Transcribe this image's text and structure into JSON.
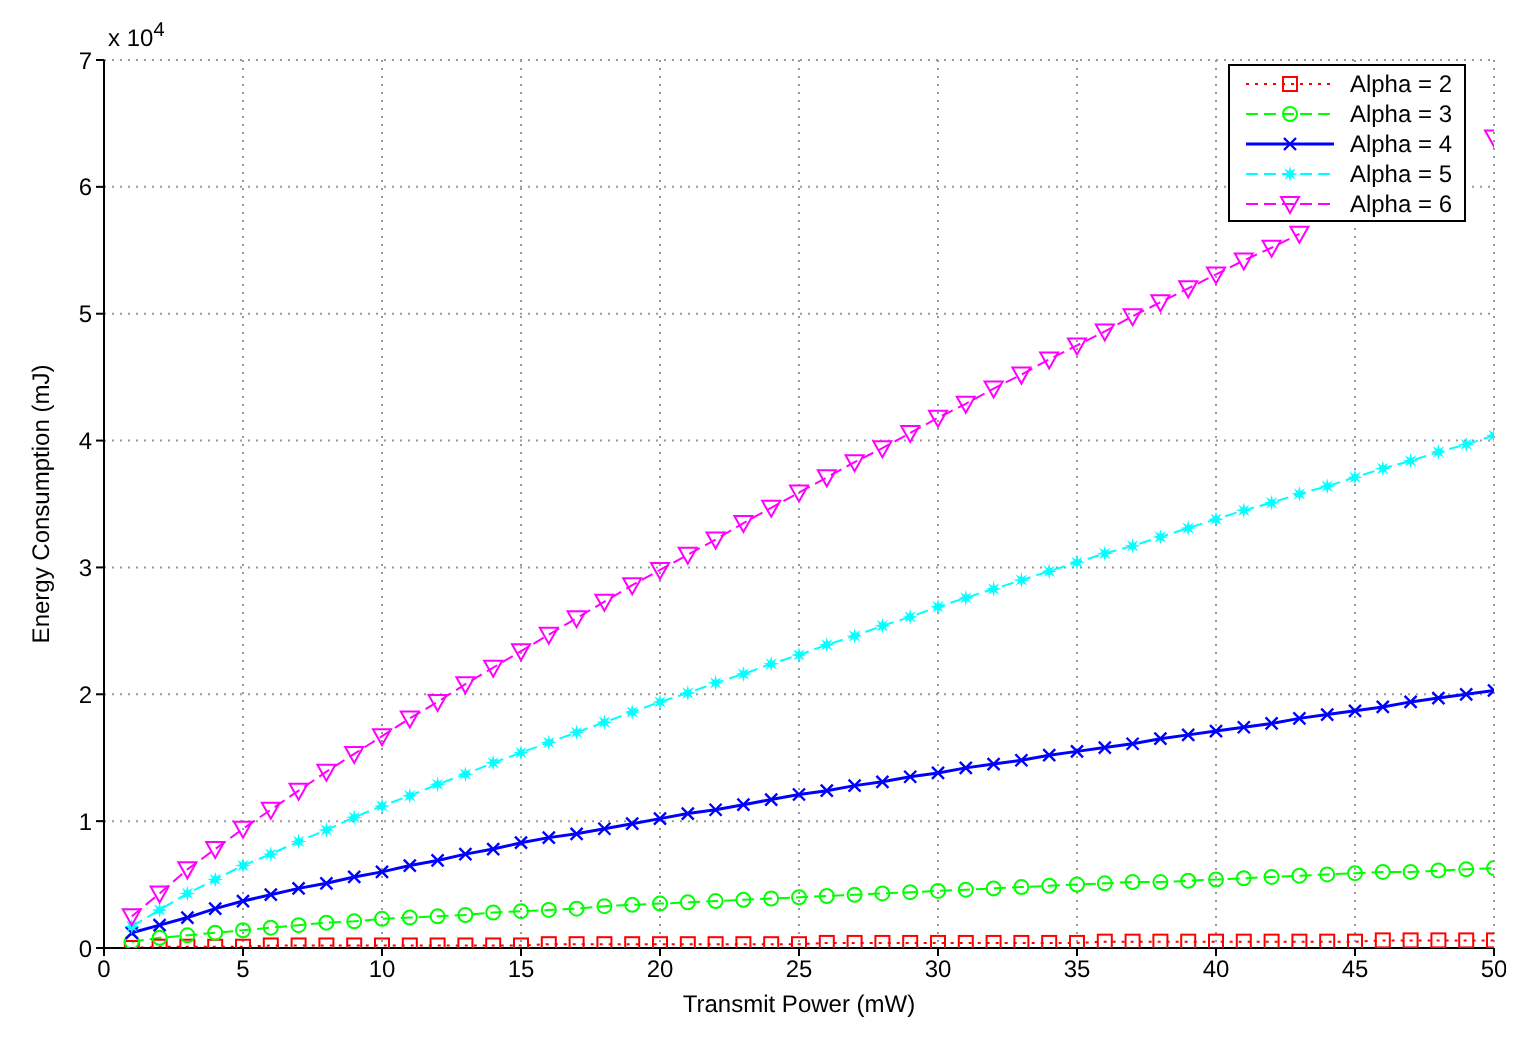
{
  "chart_data": {
    "type": "line",
    "xlabel": "Transmit Power (mW)",
    "ylabel": "Energy Consumption (mJ)",
    "annotations": [
      "x 10$^{4}$"
    ],
    "x": [
      1,
      2,
      3,
      4,
      5,
      6,
      7,
      8,
      9,
      10,
      11,
      12,
      13,
      14,
      15,
      16,
      17,
      18,
      19,
      20,
      21,
      22,
      23,
      24,
      25,
      26,
      27,
      28,
      29,
      30,
      31,
      32,
      33,
      34,
      35,
      36,
      37,
      38,
      39,
      40,
      41,
      42,
      43,
      44,
      45,
      46,
      47,
      48,
      49,
      50
    ],
    "xlim": [
      0,
      50
    ],
    "xticks": [
      0,
      5,
      10,
      15,
      20,
      25,
      30,
      35,
      40,
      45,
      50
    ],
    "ylim": [
      0,
      7
    ],
    "yticks": [
      0,
      1,
      2,
      3,
      4,
      5,
      6,
      7
    ],
    "grid": true,
    "legend": "top right",
    "series": [
      {
        "name": "Alpha = 2",
        "color": "#ff0000",
        "marker": "square",
        "line_style": "dotted",
        "values": [
          0,
          0.01,
          0.01,
          0.01,
          0.01,
          0.02,
          0.02,
          0.02,
          0.02,
          0.02,
          0.02,
          0.02,
          0.02,
          0.02,
          0.02,
          0.03,
          0.03,
          0.03,
          0.03,
          0.03,
          0.03,
          0.03,
          0.03,
          0.03,
          0.03,
          0.04,
          0.04,
          0.04,
          0.04,
          0.04,
          0.04,
          0.04,
          0.04,
          0.04,
          0.04,
          0.05,
          0.05,
          0.05,
          0.05,
          0.05,
          0.05,
          0.05,
          0.05,
          0.05,
          0.05,
          0.06,
          0.06,
          0.06,
          0.06,
          0.06
        ]
      },
      {
        "name": "Alpha = 3",
        "color": "#00ff00",
        "marker": "circle",
        "line_style": "dashed",
        "values": [
          0.05,
          0.08,
          0.1,
          0.12,
          0.14,
          0.16,
          0.18,
          0.2,
          0.21,
          0.23,
          0.24,
          0.25,
          0.26,
          0.28,
          0.29,
          0.3,
          0.31,
          0.33,
          0.34,
          0.35,
          0.36,
          0.37,
          0.38,
          0.39,
          0.4,
          0.41,
          0.42,
          0.43,
          0.44,
          0.45,
          0.46,
          0.47,
          0.48,
          0.49,
          0.5,
          0.51,
          0.52,
          0.52,
          0.53,
          0.54,
          0.55,
          0.56,
          0.57,
          0.58,
          0.59,
          0.6,
          0.6,
          0.61,
          0.62,
          0.63
        ]
      },
      {
        "name": "Alpha = 4",
        "color": "#0000ff",
        "marker": "cross",
        "line_style": "solid",
        "values": [
          0.12,
          0.18,
          0.24,
          0.31,
          0.37,
          0.42,
          0.47,
          0.51,
          0.56,
          0.6,
          0.65,
          0.69,
          0.74,
          0.78,
          0.83,
          0.87,
          0.9,
          0.94,
          0.98,
          1.02,
          1.06,
          1.09,
          1.13,
          1.17,
          1.21,
          1.24,
          1.28,
          1.31,
          1.35,
          1.38,
          1.42,
          1.45,
          1.48,
          1.52,
          1.55,
          1.58,
          1.61,
          1.65,
          1.68,
          1.71,
          1.74,
          1.77,
          1.81,
          1.84,
          1.87,
          1.9,
          1.94,
          1.97,
          2,
          2.03
        ]
      },
      {
        "name": "Alpha = 5",
        "color": "#00ffff",
        "marker": "star",
        "line_style": "dashed",
        "values": [
          0.17,
          0.3,
          0.43,
          0.54,
          0.65,
          0.74,
          0.84,
          0.93,
          1.03,
          1.12,
          1.2,
          1.29,
          1.37,
          1.46,
          1.54,
          1.62,
          1.7,
          1.78,
          1.86,
          1.94,
          2.01,
          2.09,
          2.16,
          2.24,
          2.31,
          2.39,
          2.46,
          2.54,
          2.61,
          2.69,
          2.76,
          2.83,
          2.9,
          2.97,
          3.04,
          3.11,
          3.17,
          3.24,
          3.31,
          3.38,
          3.45,
          3.51,
          3.58,
          3.64,
          3.71,
          3.78,
          3.84,
          3.91,
          3.97,
          4.04
        ]
      },
      {
        "name": "Alpha = 6",
        "color": "#ff00ff",
        "marker": "triangle",
        "line_style": "dashed",
        "values": [
          0.25,
          0.43,
          0.62,
          0.78,
          0.94,
          1.09,
          1.24,
          1.39,
          1.53,
          1.67,
          1.81,
          1.94,
          2.08,
          2.21,
          2.34,
          2.47,
          2.6,
          2.73,
          2.86,
          2.98,
          3.1,
          3.22,
          3.35,
          3.47,
          3.59,
          3.71,
          3.83,
          3.94,
          4.06,
          4.18,
          4.29,
          4.41,
          4.52,
          4.64,
          4.75,
          4.86,
          4.98,
          5.09,
          5.2,
          5.31,
          5.42,
          5.52,
          5.63,
          null,
          null,
          null,
          null,
          null,
          null,
          6.39
        ]
      }
    ]
  }
}
